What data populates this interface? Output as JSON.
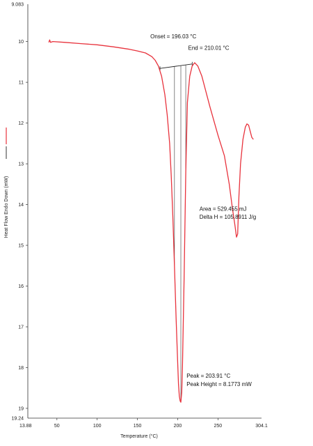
{
  "chart_data": {
    "type": "line",
    "title": "",
    "xlabel": "Temperature (°C)",
    "ylabel": "Heat Flow Endo Down (mW)",
    "xlim": [
      13.88,
      304.1
    ],
    "ylim_top": 9.083,
    "ylim_bottom": 19.24,
    "y_inverted": true,
    "x_ticks": [
      "13.88",
      "50",
      "100",
      "150",
      "200",
      "250",
      "304.1"
    ],
    "y_ticks": [
      "9.083",
      "10",
      "11",
      "12",
      "13",
      "14",
      "15",
      "16",
      "17",
      "18",
      "19",
      "19.24"
    ],
    "grid": false,
    "series": [
      {
        "name": "",
        "color": "#e8323c",
        "x": [
          40,
          41,
          42,
          45,
          60,
          80,
          100,
          120,
          140,
          150,
          160,
          168,
          172,
          176,
          180,
          184,
          187,
          190,
          192,
          194,
          196,
          198,
          200,
          201,
          202,
          203,
          203.91,
          205,
          206,
          208,
          210,
          212,
          215,
          218,
          221,
          225,
          230,
          240,
          250,
          258,
          264,
          268,
          271,
          273,
          274.5,
          276,
          278,
          281,
          284,
          286,
          288,
          290,
          292,
          294
        ],
        "y": [
          10.02,
          9.96,
          10.02,
          10.0,
          10.02,
          10.05,
          10.08,
          10.13,
          10.19,
          10.23,
          10.28,
          10.37,
          10.46,
          10.6,
          10.85,
          11.3,
          11.8,
          12.5,
          13.3,
          14.3,
          15.5,
          16.8,
          17.9,
          18.4,
          18.7,
          18.82,
          18.85,
          18.6,
          17.9,
          15.8,
          13.2,
          11.5,
          10.85,
          10.6,
          10.52,
          10.6,
          10.85,
          11.6,
          12.3,
          12.8,
          13.5,
          14.1,
          14.5,
          14.8,
          14.72,
          13.8,
          13.0,
          12.4,
          12.1,
          12.02,
          12.05,
          12.2,
          12.35,
          12.4
        ]
      }
    ],
    "baseline": {
      "x": [
        178,
        218
      ],
      "y": [
        10.66,
        10.55
      ]
    },
    "drop_lines_x": [
      196,
      203.91,
      210
    ],
    "annotations": [
      {
        "text": "Onset = 196.03 °C",
        "x": 166,
        "y": 9.92
      },
      {
        "text": "End = 210.01 °C",
        "x": 213,
        "y": 10.2
      },
      {
        "text": "Area = 529.455 mJ",
        "x": 227,
        "y": 14.15
      },
      {
        "text": "Delta H = 105.8911 J/g",
        "x": 227,
        "y": 14.35
      },
      {
        "text": "Peak = 203.91 °C",
        "x": 211,
        "y": 18.25
      },
      {
        "text": "Peak Height = 8.1773 mW",
        "x": 211,
        "y": 18.45
      }
    ]
  }
}
